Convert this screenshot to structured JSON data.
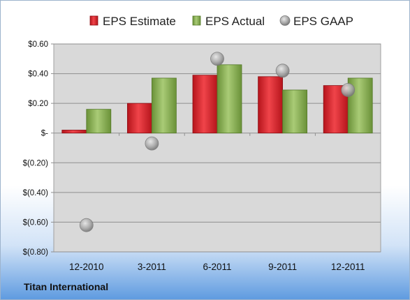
{
  "company": "Titan International",
  "chart_data": {
    "type": "bar",
    "categories": [
      "12-2010",
      "3-2011",
      "6-2011",
      "9-2011",
      "12-2011"
    ],
    "series": [
      {
        "name": "EPS Estimate",
        "kind": "bar",
        "color": "#e3222a",
        "values": [
          0.02,
          0.2,
          0.39,
          0.38,
          0.32
        ]
      },
      {
        "name": "EPS Actual",
        "kind": "bar",
        "color": "#8ab356",
        "values": [
          0.16,
          0.37,
          0.46,
          0.29,
          0.37
        ]
      },
      {
        "name": "EPS GAAP",
        "kind": "scatter",
        "color": "#a6a6a6",
        "values": [
          -0.62,
          -0.07,
          0.5,
          0.42,
          0.29
        ]
      }
    ],
    "ylim": [
      -0.8,
      0.6
    ],
    "yticks": [
      0.6,
      0.4,
      0.2,
      0,
      -0.2,
      -0.4,
      -0.6,
      -0.8
    ],
    "ytick_labels": [
      "$0.60",
      "$0.40",
      "$0.20",
      "$-",
      "$(0.20)",
      "$(0.40)",
      "$(0.60)",
      "$(0.80)"
    ],
    "grid": true,
    "legend": "top"
  }
}
